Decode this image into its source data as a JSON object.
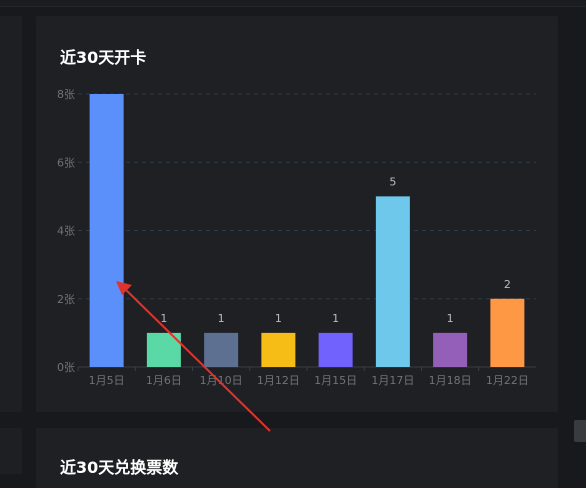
{
  "cards": [
    {
      "title": "近30天开卡"
    },
    {
      "title": "近30天兑换票数"
    }
  ],
  "colors": {
    "background": "#18191c",
    "card": "#1f2024",
    "grid": "#2c3a4a",
    "arrow": "#e0332e"
  },
  "chart_data": {
    "type": "bar",
    "title": "近30天开卡",
    "categories": [
      "1月5日",
      "1月6日",
      "1月10日",
      "1月12日",
      "1月15日",
      "1月17日",
      "1月18日",
      "1月22日"
    ],
    "values": [
      8,
      1,
      1,
      1,
      1,
      5,
      1,
      2
    ],
    "data_labels": [
      "",
      "1",
      "1",
      "1",
      "1",
      "5",
      "1",
      "2"
    ],
    "bar_colors": [
      "#5b8ff9",
      "#5ad8a6",
      "#5d7092",
      "#f6bd16",
      "#7262fd",
      "#6dc8ec",
      "#945fb9",
      "#ff9845"
    ],
    "yticks": [
      "0张",
      "2张",
      "4张",
      "6张",
      "8张"
    ],
    "ylim": [
      0,
      8
    ],
    "grid": true,
    "xlabel": "",
    "ylabel": ""
  }
}
